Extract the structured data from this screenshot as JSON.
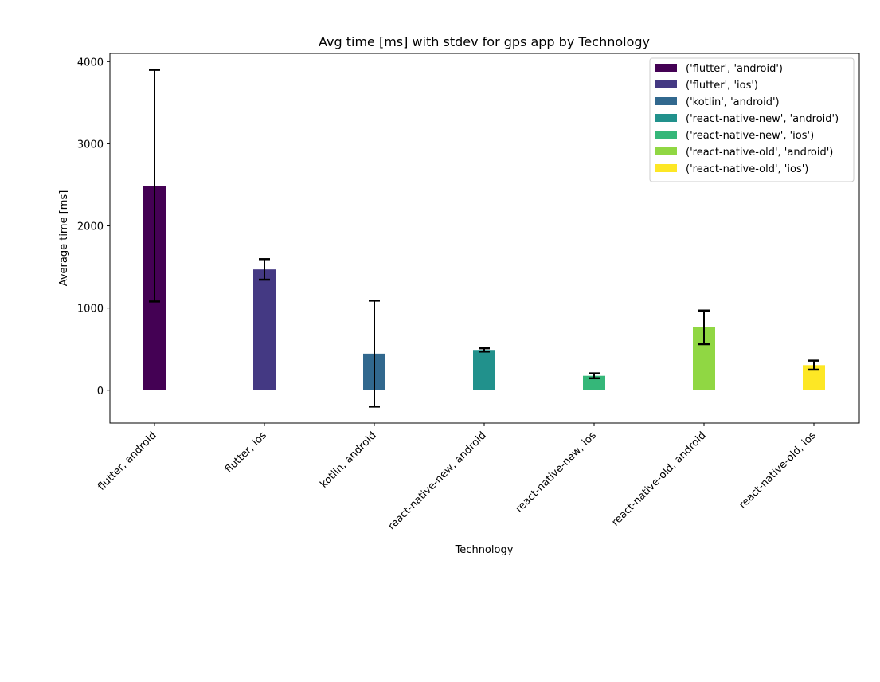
{
  "chart_data": {
    "type": "bar",
    "title": "Avg time [ms] with stdev for gps app by Technology",
    "xlabel": "Technology",
    "ylabel": "Average time [ms]",
    "ylim": [
      -400,
      4100
    ],
    "yticks": [
      0,
      1000,
      2000,
      3000,
      4000
    ],
    "grid": false,
    "legend_position": "top-right",
    "categories": [
      "flutter, android",
      "flutter, ios",
      "kotlin, android",
      "react-native-new, android",
      "react-native-new, ios",
      "react-native-old, android",
      "react-native-old, ios"
    ],
    "series": [
      {
        "name": "('flutter', 'android')",
        "color": "#440154",
        "category_index": 0,
        "value": 2490,
        "stdev": 1410
      },
      {
        "name": "('flutter', 'ios')",
        "color": "#443983",
        "category_index": 1,
        "value": 1470,
        "stdev": 125
      },
      {
        "name": "('kotlin', 'android')",
        "color": "#31688e",
        "category_index": 2,
        "value": 445,
        "stdev": 645
      },
      {
        "name": "('react-native-new', 'android')",
        "color": "#21918c",
        "category_index": 3,
        "value": 490,
        "stdev": 20
      },
      {
        "name": "('react-native-new', 'ios')",
        "color": "#35b779",
        "category_index": 4,
        "value": 175,
        "stdev": 30
      },
      {
        "name": "('react-native-old', 'android')",
        "color": "#90d743",
        "category_index": 5,
        "value": 765,
        "stdev": 205
      },
      {
        "name": "('react-native-old', 'ios')",
        "color": "#fde725",
        "category_index": 6,
        "value": 305,
        "stdev": 55
      }
    ]
  }
}
